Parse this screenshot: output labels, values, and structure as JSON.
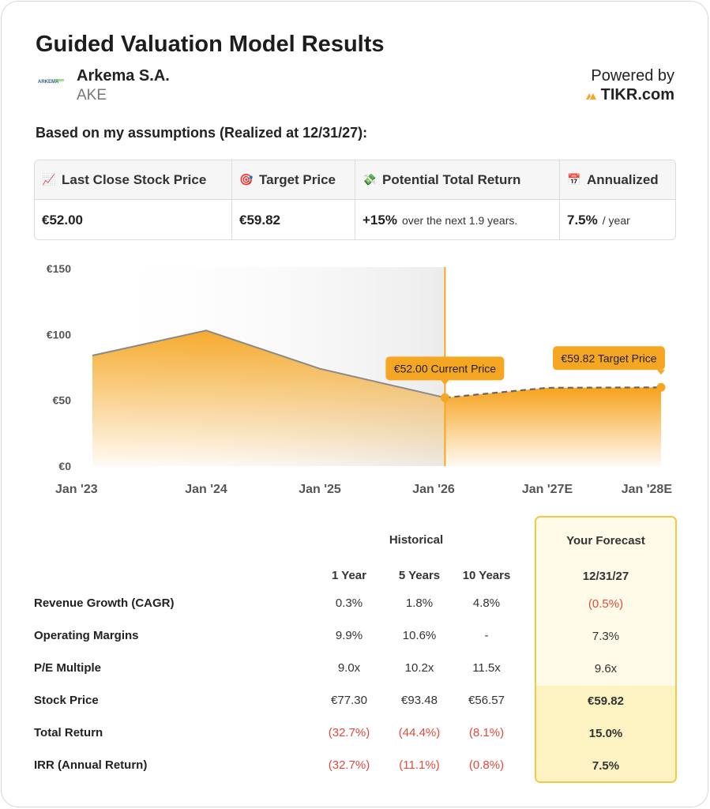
{
  "header": {
    "title": "Guided Valuation Model Results",
    "company_name": "Arkema S.A.",
    "ticker": "AKE",
    "logo_text": "ARKEMA",
    "powered_by": "Powered by",
    "brand": "TIKR.com"
  },
  "assumptions_label": "Based on my assumptions (Realized at 12/31/27):",
  "metrics": {
    "last_close": {
      "icon": "chart-up-icon",
      "label": "Last Close Stock Price",
      "value": "€52.00"
    },
    "target": {
      "icon": "target-icon",
      "label": "Target Price",
      "value": "€59.82"
    },
    "total_return": {
      "icon": "money-icon",
      "label": "Potential Total Return",
      "value": "+15%",
      "suffix": "over the next 1.9 years."
    },
    "annualized": {
      "icon": "calendar-icon",
      "label": "Annualized",
      "value": "7.5%",
      "suffix": "/ year"
    }
  },
  "colors": {
    "accent": "#f5a623",
    "accent_dark": "#e8961a",
    "line_gray": "#8a8a8a",
    "negative": "#e04a3a",
    "forecast_bg": "#fffbe8",
    "forecast_border": "#f5c842"
  },
  "chart_data": {
    "type": "area",
    "y_tick_labels": [
      "€150",
      "€100",
      "€50",
      "€0"
    ],
    "y_ticks": [
      150,
      100,
      50,
      0
    ],
    "ylim": [
      0,
      150
    ],
    "x_tick_labels": [
      "Jan '23",
      "Jan '24",
      "Jan '25",
      "Jan '26",
      "Jan '27E",
      "Jan '28E"
    ],
    "x_ticks": [
      2023.0,
      2024.0,
      2025.0,
      2026.0,
      2027.0,
      2028.0
    ],
    "xlim": [
      2023.0,
      2028.0
    ],
    "historical": {
      "x": [
        2023.0,
        2024.0,
        2025.0,
        2026.1
      ],
      "y": [
        84,
        103,
        74,
        52
      ]
    },
    "forecast": {
      "x": [
        2026.1,
        2027.0,
        2028.0
      ],
      "y": [
        52,
        59.5,
        59.82
      ]
    },
    "current_x": 2026.1,
    "current_label": "€52.00 Current Price",
    "target_label": "€59.82 Target Price"
  },
  "table": {
    "historical_header": "Historical",
    "forecast_header": "Your Forecast",
    "columns": [
      "1 Year",
      "5 Years",
      "10 Years"
    ],
    "forecast_date": "12/31/27",
    "rows": [
      {
        "label": "Revenue Growth (CAGR)",
        "values": [
          "0.3%",
          "1.8%",
          "4.8%"
        ],
        "forecast": "(0.5%)"
      },
      {
        "label": "Operating Margins",
        "values": [
          "9.9%",
          "10.6%",
          "-"
        ],
        "forecast": "7.3%"
      },
      {
        "label": "P/E Multiple",
        "values": [
          "9.0x",
          "10.2x",
          "11.5x"
        ],
        "forecast": "9.6x"
      },
      {
        "label": "Stock Price",
        "values": [
          "€77.30",
          "€93.48",
          "€56.57"
        ],
        "forecast": "€59.82"
      },
      {
        "label": "Total Return",
        "values": [
          "(32.7%)",
          "(44.4%)",
          "(8.1%)"
        ],
        "forecast": "15.0%"
      },
      {
        "label": "IRR (Annual Return)",
        "values": [
          "(32.7%)",
          "(11.1%)",
          "(0.8%)"
        ],
        "forecast": "7.5%"
      }
    ]
  }
}
